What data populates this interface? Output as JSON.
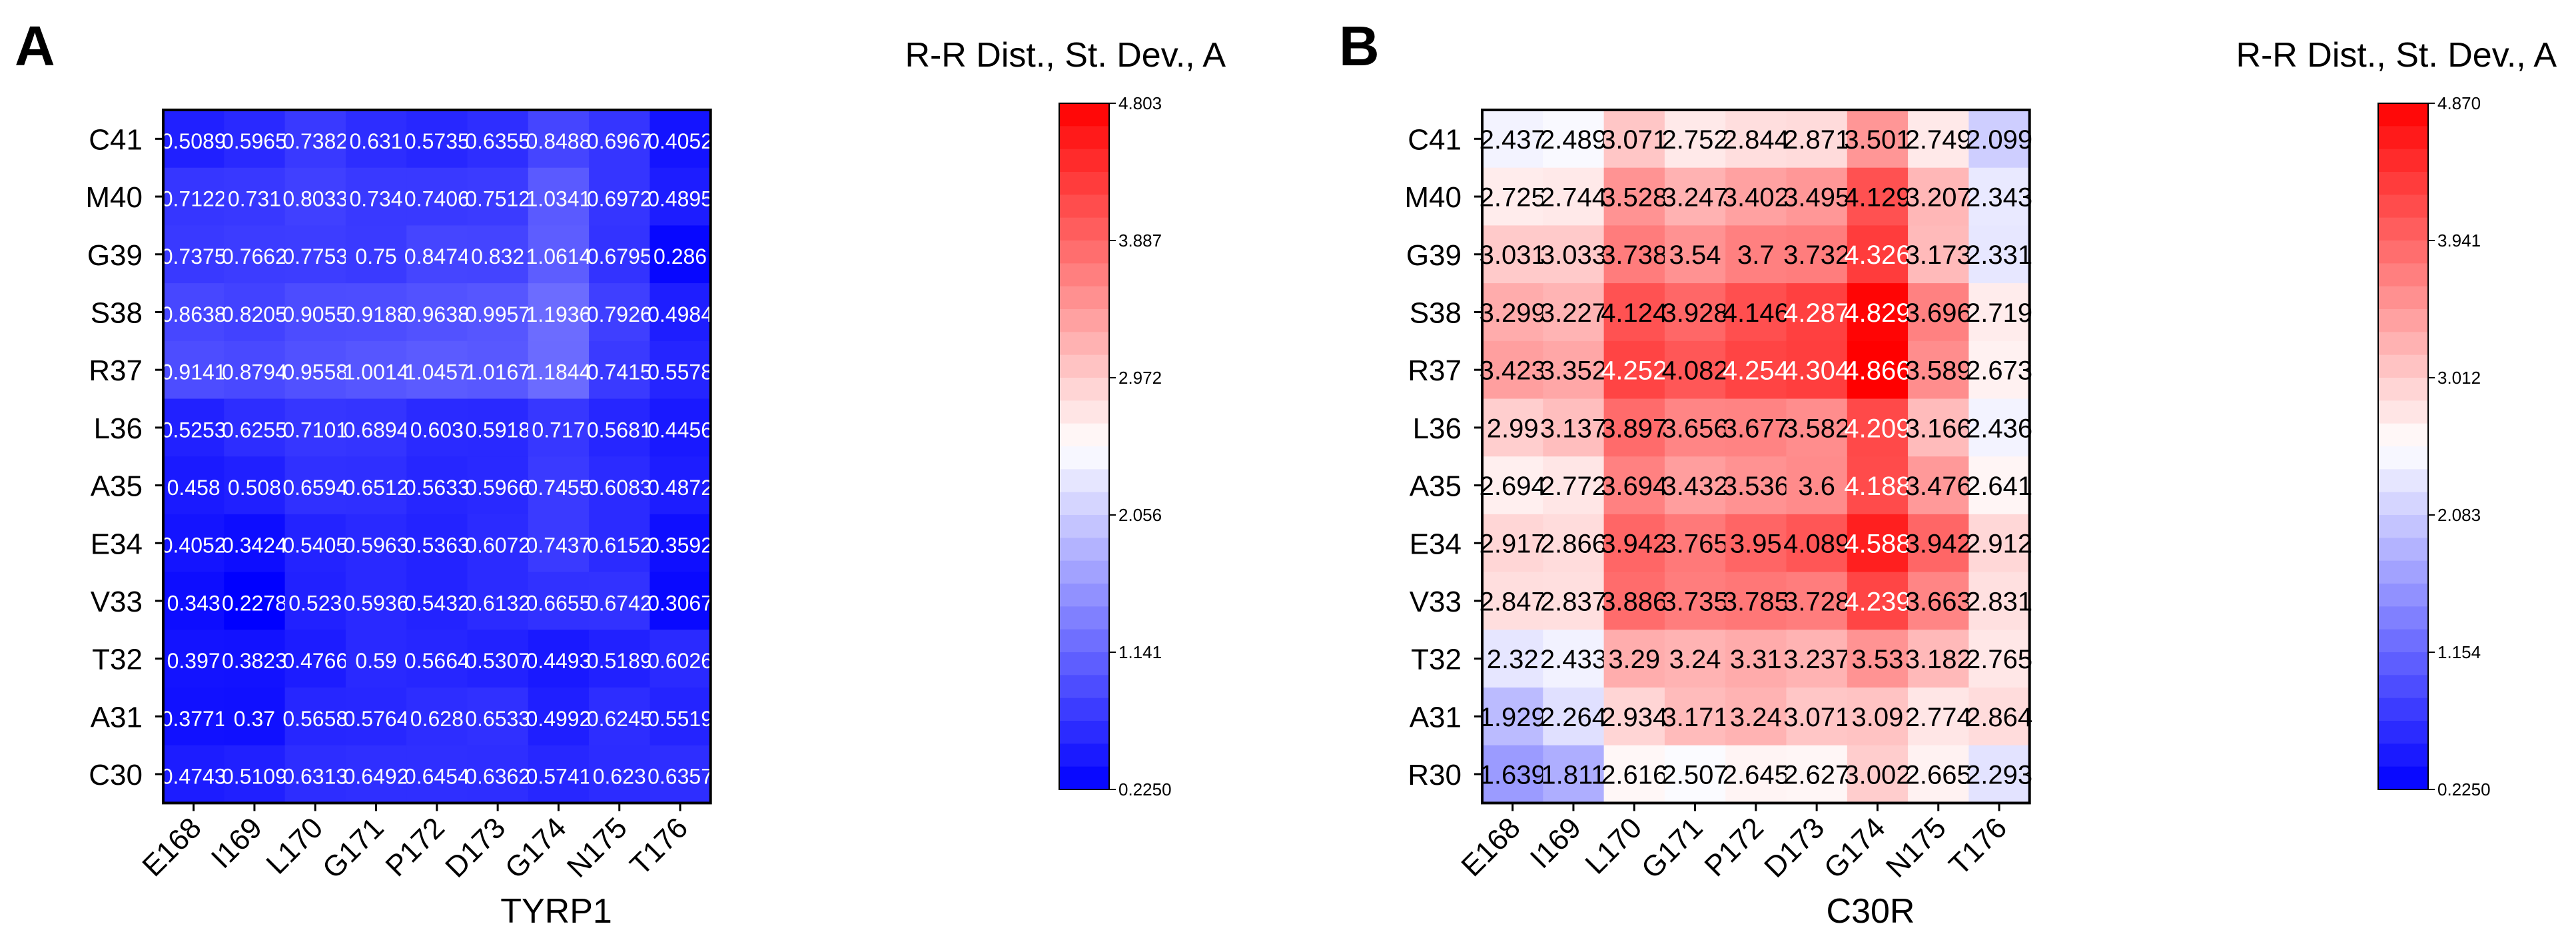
{
  "chart_data": [
    {
      "type": "heatmap",
      "panel_label": "A",
      "title": "R-R Dist., St. Dev., A",
      "xlabel": "TYRP1",
      "ylabel": "",
      "x_categories": [
        "E168",
        "I169",
        "L170",
        "G171",
        "P172",
        "D173",
        "G174",
        "N175",
        "T176"
      ],
      "y_categories": [
        "C41",
        "M40",
        "G39",
        "S38",
        "R37",
        "L36",
        "A35",
        "E34",
        "V33",
        "T32",
        "A31",
        "C30"
      ],
      "values": [
        [
          "0.5089",
          "0.5965",
          "0.7382",
          "0.631",
          "0.5735",
          "0.6355",
          "0.8488",
          "0.6967",
          "0.4052"
        ],
        [
          "0.7122",
          "0.731",
          "0.8033",
          "0.734",
          "0.7406",
          "0.7512",
          "1.0341",
          "0.6972",
          "0.4895"
        ],
        [
          "0.7375",
          "0.7662",
          "0.7753",
          "0.75",
          "0.8474",
          "0.832",
          "1.0614",
          "0.6795",
          "0.286"
        ],
        [
          "0.8638",
          "0.8205",
          "0.9055",
          "0.9188",
          "0.9638",
          "0.9957",
          "1.1936",
          "0.7926",
          "0.4984"
        ],
        [
          "0.9141",
          "0.8794",
          "0.9558",
          "1.0014",
          "1.0457",
          "1.0167",
          "1.1844",
          "0.7415",
          "0.5578"
        ],
        [
          "0.5253",
          "0.6255",
          "0.7101",
          "0.6894",
          "0.603",
          "0.5918",
          "0.717",
          "0.5681",
          "0.4456"
        ],
        [
          "0.458",
          "0.508",
          "0.6594",
          "0.6512",
          "0.5633",
          "0.5966",
          "0.7455",
          "0.6083",
          "0.4872"
        ],
        [
          "0.4052",
          "0.3424",
          "0.5405",
          "0.5963",
          "0.5363",
          "0.6072",
          "0.7437",
          "0.6152",
          "0.3592"
        ],
        [
          "0.343",
          "0.2278",
          "0.523",
          "0.5936",
          "0.5432",
          "0.6132",
          "0.6655",
          "0.6742",
          "0.3067"
        ],
        [
          "0.397",
          "0.3823",
          "0.4766",
          "0.59",
          "0.5664",
          "0.5307",
          "0.4493",
          "0.5189",
          "0.6026"
        ],
        [
          "0.3771",
          "0.37",
          "0.5658",
          "0.5764",
          "0.628",
          "0.6533",
          "0.4992",
          "0.6245",
          "0.5519"
        ],
        [
          "0.4743",
          "0.5109",
          "0.6313",
          "0.6492",
          "0.6454",
          "0.6362",
          "0.5741",
          "0.623",
          "0.6357"
        ]
      ],
      "colorbar": {
        "min": 0.225,
        "mid": 2.514,
        "max": 4.803,
        "ticks": [
          "4.803",
          "3.887",
          "2.972",
          "2.056",
          "1.141",
          "0.2250"
        ],
        "low_color": "#0000ff",
        "mid_color": "#ffffff",
        "high_color": "#ff0000",
        "steps": 30
      }
    },
    {
      "type": "heatmap",
      "panel_label": "B",
      "title": "R-R Dist., St. Dev., A",
      "xlabel": "C30R",
      "ylabel": "",
      "x_categories": [
        "E168",
        "I169",
        "L170",
        "G171",
        "P172",
        "D173",
        "G174",
        "N175",
        "T176"
      ],
      "y_categories": [
        "C41",
        "M40",
        "G39",
        "S38",
        "R37",
        "L36",
        "A35",
        "E34",
        "V33",
        "T32",
        "A31",
        "R30"
      ],
      "values": [
        [
          "2.437",
          "2.489",
          "3.071",
          "2.752",
          "2.844",
          "2.871",
          "3.501",
          "2.749",
          "2.099"
        ],
        [
          "2.725",
          "2.744",
          "3.528",
          "3.247",
          "3.402",
          "3.495",
          "4.129",
          "3.207",
          "2.343"
        ],
        [
          "3.031",
          "3.033",
          "3.738",
          "3.54",
          "3.7",
          "3.732",
          "4.326",
          "3.173",
          "2.331"
        ],
        [
          "3.299",
          "3.227",
          "4.124",
          "3.928",
          "4.146",
          "4.287",
          "4.829",
          "3.696",
          "2.719"
        ],
        [
          "3.423",
          "3.352",
          "4.252",
          "4.082",
          "4.254",
          "4.304",
          "4.866",
          "3.589",
          "2.673"
        ],
        [
          "2.99",
          "3.137",
          "3.897",
          "3.656",
          "3.677",
          "3.582",
          "4.209",
          "3.166",
          "2.436"
        ],
        [
          "2.694",
          "2.772",
          "3.694",
          "3.432",
          "3.536",
          "3.6",
          "4.188",
          "3.476",
          "2.641"
        ],
        [
          "2.917",
          "2.866",
          "3.942",
          "3.765",
          "3.95",
          "4.089",
          "4.588",
          "3.942",
          "2.912"
        ],
        [
          "2.847",
          "2.837",
          "3.886",
          "3.735",
          "3.785",
          "3.728",
          "4.239",
          "3.663",
          "2.831"
        ],
        [
          "2.32",
          "2.433",
          "3.29",
          "3.24",
          "3.31",
          "3.237",
          "3.53",
          "3.182",
          "2.765"
        ],
        [
          "1.929",
          "2.264",
          "2.934",
          "3.171",
          "3.24",
          "3.071",
          "3.09",
          "2.774",
          "2.864"
        ],
        [
          "1.639",
          "1.811",
          "2.616",
          "2.507",
          "2.645",
          "2.627",
          "3.002",
          "2.665",
          "2.293"
        ]
      ],
      "colorbar": {
        "min": 0.225,
        "mid": 2.5475,
        "max": 4.87,
        "ticks": [
          "4.870",
          "3.941",
          "3.012",
          "2.083",
          "1.154",
          "0.2250"
        ],
        "low_color": "#0000ff",
        "mid_color": "#ffffff",
        "high_color": "#ff0000",
        "steps": 30
      }
    }
  ]
}
